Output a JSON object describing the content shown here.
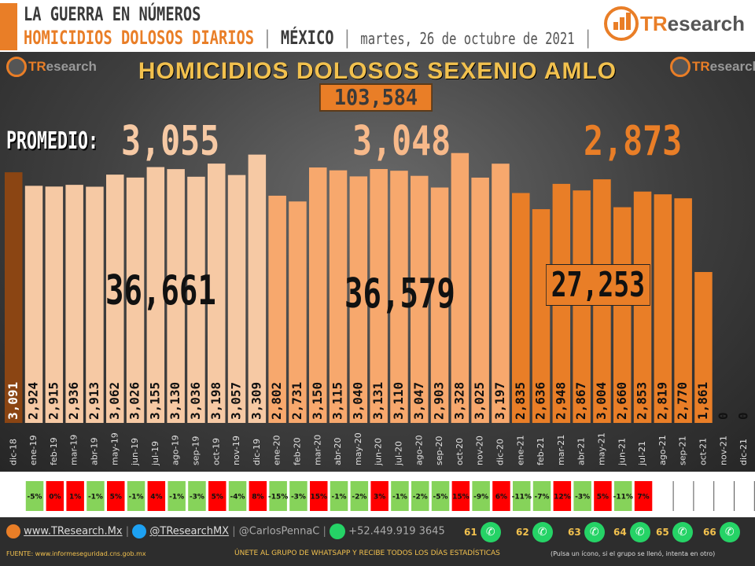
{
  "header": {
    "line1": "LA GUERRA EN NÚMEROS",
    "line2_main": "HOMICIDIOS DOLOSOS DIARIOS",
    "sep": "|",
    "location": "MÉXICO",
    "date": "martes, 26 de octubre de 2021"
  },
  "brand": {
    "logo_prefix": "TR",
    "logo_suffix": "esearch"
  },
  "chart_data": {
    "type": "bar",
    "title": "HOMICIDIOS DOLOSOS SEXENIO AMLO",
    "total": "103,584",
    "promedio_label": "PROMEDIO:",
    "averages": [
      "3,055",
      "3,048",
      "2,873"
    ],
    "period_totals": [
      "36,661",
      "36,579",
      "27,253"
    ],
    "categories": [
      "dic-18",
      "ene-19",
      "feb-19",
      "mar-19",
      "abr-19",
      "may-19",
      "jun-19",
      "jul-19",
      "ago-19",
      "sep-19",
      "oct-19",
      "nov-19",
      "dic-19",
      "ene-20",
      "feb-20",
      "mar-20",
      "abr-20",
      "may-20",
      "jun-20",
      "jul-20",
      "ago-20",
      "sep-20",
      "oct-20",
      "nov-20",
      "dic-20",
      "ene-21",
      "feb-21",
      "mar-21",
      "abr-21",
      "may-21",
      "jun-21",
      "jul-21",
      "ago-21",
      "sep-21",
      "oct-21",
      "nov-21",
      "dic-21"
    ],
    "values": [
      3091,
      2924,
      2915,
      2936,
      2913,
      3062,
      3026,
      3155,
      3130,
      3036,
      3198,
      3057,
      3309,
      2802,
      2731,
      3150,
      3115,
      3040,
      3131,
      3110,
      3047,
      2903,
      3328,
      3025,
      3197,
      2835,
      2636,
      2948,
      2867,
      3004,
      2660,
      2853,
      2819,
      2770,
      1861,
      0,
      0
    ],
    "value_labels": [
      "3,091",
      "2,924",
      "2,915",
      "2,936",
      "2,913",
      "3,062",
      "3,026",
      "3,155",
      "3,130",
      "3,036",
      "3,198",
      "3,057",
      "3,309",
      "2,802",
      "2,731",
      "3,150",
      "3,115",
      "3,040",
      "3,131",
      "3,110",
      "3,047",
      "2,903",
      "3,328",
      "3,025",
      "3,197",
      "2,835",
      "2,636",
      "2,948",
      "2,867",
      "3,004",
      "2,660",
      "2,853",
      "2,819",
      "2,770",
      "1,861",
      "0",
      "0"
    ],
    "changes": [
      "",
      "-5%",
      "0%",
      "1%",
      "-1%",
      "5%",
      "-1%",
      "4%",
      "-1%",
      "-3%",
      "5%",
      "-4%",
      "8%",
      "-15%",
      "-3%",
      "15%",
      "-1%",
      "-2%",
      "3%",
      "-1%",
      "-2%",
      "-5%",
      "15%",
      "-9%",
      "6%",
      "-11%",
      "-7%",
      "12%",
      "-3%",
      "5%",
      "-11%",
      "7%",
      "",
      "",
      "",
      "",
      ""
    ],
    "colors": {
      "y2018": "#8b4513",
      "y2019": "#f6c9a4",
      "y2020": "#f7a86d",
      "y2021": "#e97e27",
      "up": "#ff0000",
      "down": "#86d35a"
    },
    "ylim": [
      0,
      3800
    ]
  },
  "footer": {
    "website": "www.TResearch.Mx",
    "twitter": "@TResearchMX",
    "author": "@CarlosPennaC",
    "phone": "+52.449.919 3645",
    "source": "FUENTE:  www.informeseguridad.cns.gob.mx",
    "cta": "ÚNETE  AL GRUPO DE  WHATSAPP  Y RECIBE  TODOS  LOS  DÍAS ESTADÍSTICAS",
    "cta_note": "(Pulsa un ícono, si el grupo se llenó, intenta en otro)",
    "groups": [
      "61",
      "62",
      "63",
      "64",
      "65",
      "66"
    ]
  }
}
